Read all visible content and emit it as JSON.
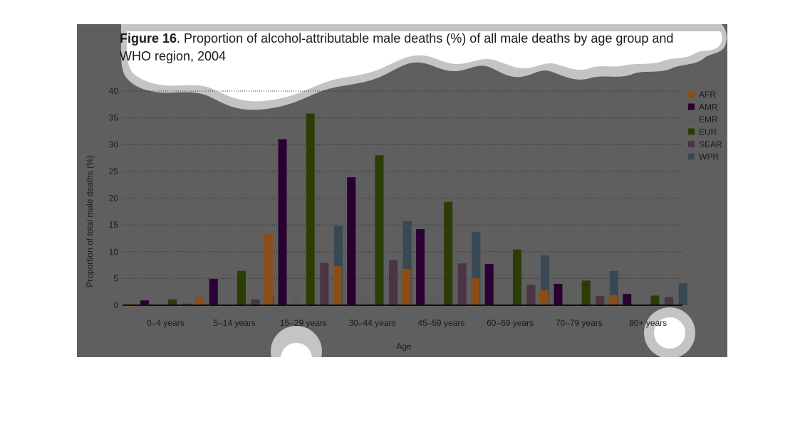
{
  "figure": {
    "label": "Figure 16",
    "caption": ". Proportion of alcohol-attributable male deaths (%) of all male deaths by age group and WHO region, 2004"
  },
  "colors": {
    "background": "#5f5f5f",
    "highlight": "#c4c4c4",
    "AFR": "#8a4e16",
    "AMR": "#2a0033",
    "EMR": "#5d5d5d",
    "EUR": "#2b3d05",
    "SEAR": "#4b3444",
    "WPR": "#384854"
  },
  "chart_data": {
    "type": "bar",
    "xlabel": "Age",
    "ylabel": "Proportion of total male deaths (%)",
    "ylim": [
      0,
      40
    ],
    "yticks": [
      0,
      5,
      10,
      15,
      20,
      25,
      30,
      35,
      40
    ],
    "grid": "horizontal dotted",
    "legend_position": "top-right",
    "categories": [
      "0–4 years",
      "5–14 years",
      "15–29 years",
      "30–44 years",
      "45–59 years",
      "60–69 years",
      "70–79 years",
      "80+ years"
    ],
    "series": [
      {
        "name": "AFR",
        "values": [
          0.3,
          1.6,
          13.4,
          7.3,
          6.8,
          5.0,
          2.8,
          1.9
        ]
      },
      {
        "name": "AMR",
        "values": [
          0.9,
          4.9,
          31.0,
          23.9,
          14.2,
          7.7,
          4.0,
          2.1
        ]
      },
      {
        "name": "EMR",
        "values": [
          0.1,
          0.2,
          1.9,
          1.8,
          1.7,
          1.0,
          0.5,
          0.3
        ]
      },
      {
        "name": "EUR",
        "values": [
          1.1,
          6.4,
          35.8,
          28.0,
          19.3,
          10.4,
          4.6,
          1.8
        ]
      },
      {
        "name": "SEAR",
        "values": [
          0.3,
          1.1,
          7.9,
          8.4,
          7.8,
          3.8,
          1.7,
          1.5
        ]
      },
      {
        "name": "WPR",
        "values": [
          0.4,
          1.8,
          14.8,
          15.7,
          13.7,
          9.3,
          6.4,
          4.1
        ]
      }
    ]
  }
}
